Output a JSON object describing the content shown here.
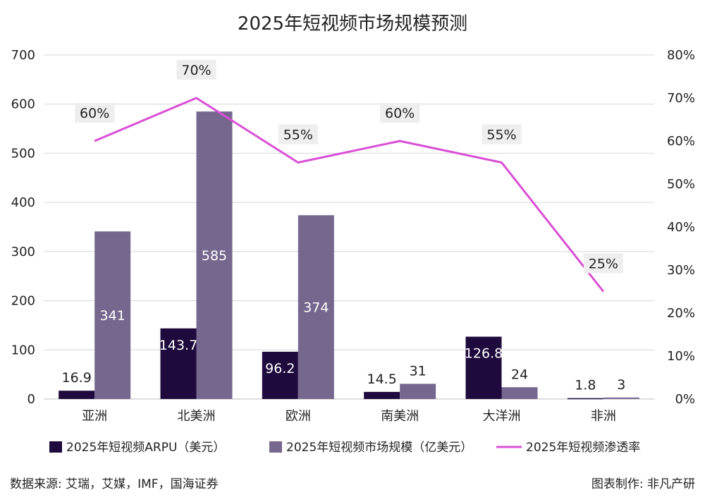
{
  "chart_data": {
    "type": "bar",
    "title": "2025年短视频市场规模预测",
    "categories": [
      "亚洲",
      "北美洲",
      "欧洲",
      "南美洲",
      "大洋洲",
      "非洲"
    ],
    "series": [
      {
        "name": "2025年短视频ARPU（美元）",
        "type": "bar",
        "axis": "left",
        "color": "#1e0a3c",
        "values": [
          16.9,
          143.7,
          96.2,
          14.5,
          126.8,
          1.8
        ],
        "labels": [
          "16.9",
          "143.7",
          "96.2",
          "14.5",
          "126.8",
          "1.8"
        ]
      },
      {
        "name": "2025年短视频市场规模（亿美元）",
        "type": "bar",
        "axis": "left",
        "color": "#76678f",
        "values": [
          341,
          585,
          374,
          31,
          24,
          3
        ],
        "labels": [
          "341",
          "585",
          "374",
          "31",
          "24",
          "3"
        ]
      },
      {
        "name": "2025年短视频渗透率",
        "type": "line",
        "axis": "right",
        "color": "#d94fd6",
        "values": [
          0.6,
          0.7,
          0.55,
          0.6,
          0.55,
          0.25
        ],
        "labels": [
          "60%",
          "70%",
          "55%",
          "60%",
          "55%",
          "25%"
        ]
      }
    ],
    "y_left": {
      "min": 0,
      "max": 700,
      "ticks": [
        "0",
        "100",
        "200",
        "300",
        "400",
        "500",
        "600",
        "700"
      ]
    },
    "y_right": {
      "min": 0,
      "max": 0.8,
      "ticks": [
        "0%",
        "10%",
        "20%",
        "30%",
        "40%",
        "50%",
        "60%",
        "70%",
        "80%"
      ]
    },
    "grid": true,
    "legend_position": "bottom"
  },
  "footer": {
    "source": "数据来源: 艾瑞，艾媒，IMF，国海证券",
    "credit": "图表制作: 非凡产研"
  }
}
